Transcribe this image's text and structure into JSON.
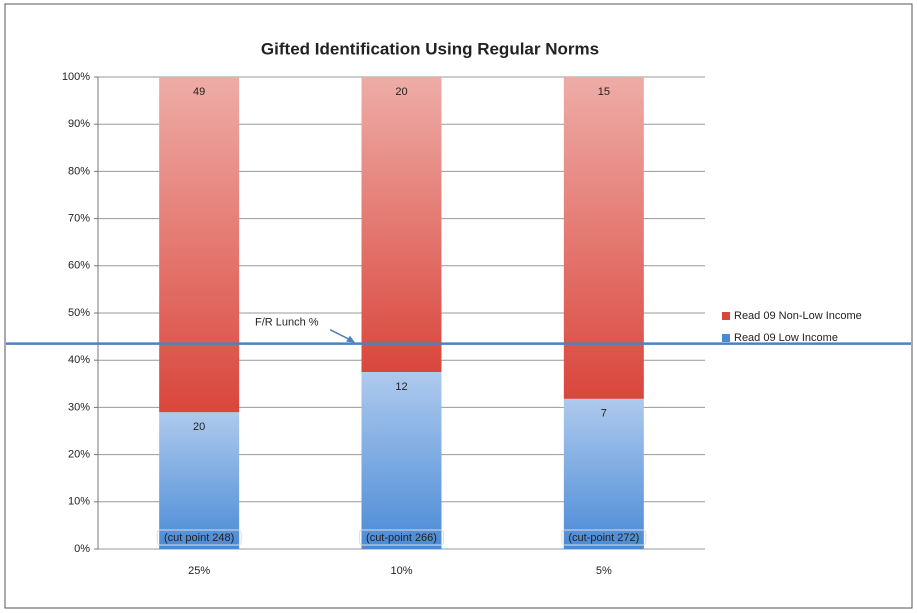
{
  "chart_data": {
    "type": "bar",
    "stack": "percent",
    "title": "Gifted Identification Using Regular Norms",
    "categories": [
      "25%",
      "10%",
      "5%"
    ],
    "series": [
      {
        "name": "Read 09 Low Income",
        "color": "#4a8ad6",
        "values": [
          20,
          12,
          7
        ]
      },
      {
        "name": "Read 09  Non-Low Income",
        "color": "#d9463c",
        "values": [
          49,
          20,
          15
        ]
      }
    ],
    "bar_annotations": [
      "(cut point 248)",
      "(cut-point 266)",
      "(cut-point 272)"
    ],
    "reference_line": {
      "label": "F/R Lunch %",
      "value": 43.5,
      "color": "#4f81bd"
    },
    "ylim": [
      0,
      100
    ],
    "yticks": [
      {
        "value": 0,
        "label": "0%"
      },
      {
        "value": 10,
        "label": "10%"
      },
      {
        "value": 20,
        "label": "20%"
      },
      {
        "value": 30,
        "label": "30%"
      },
      {
        "value": 40,
        "label": "40%"
      },
      {
        "value": 50,
        "label": "50%"
      },
      {
        "value": 60,
        "label": "60%"
      },
      {
        "value": 70,
        "label": "70%"
      },
      {
        "value": 80,
        "label": "80%"
      },
      {
        "value": 90,
        "label": "90%"
      },
      {
        "value": 100,
        "label": "100%"
      }
    ],
    "grid": true,
    "legend": "right"
  }
}
